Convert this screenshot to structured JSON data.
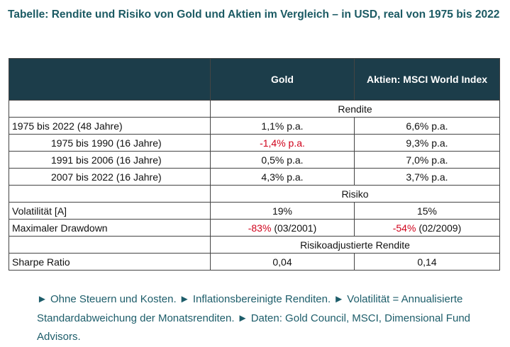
{
  "title": "Tabelle: Rendite und Risiko von Gold und Aktien im Vergleich – in USD, real von 1975 bis 2022",
  "table": {
    "headers": [
      "",
      "Gold",
      "Aktien: MSCI World Index"
    ],
    "sections": {
      "rendite": "Rendite",
      "risiko": "Risiko",
      "risikoadj": "Risikoadjustierte Rendite"
    },
    "rows": {
      "r1": {
        "label": "1975 bis 2022 (48 Jahre)",
        "gold": "1,1% p.a.",
        "msci": "6,6% p.a."
      },
      "r2": {
        "label": "1975 bis 1990 (16 Jahre)",
        "gold": "-1,4% p.a.",
        "msci": "9,3% p.a."
      },
      "r3": {
        "label": "1991 bis 2006 (16 Jahre)",
        "gold": "0,5% p.a.",
        "msci": "7,0% p.a."
      },
      "r4": {
        "label": "2007 bis 2022 (16 Jahre)",
        "gold": "4,3% p.a.",
        "msci": "3,7% p.a."
      },
      "vol": {
        "label": "Volatilität [A]",
        "gold": "19%",
        "msci": "15%"
      },
      "dd": {
        "label": "Maximaler Drawdown",
        "gold_value": "-83%",
        "gold_date": "(03/2001)",
        "msci_value": "-54%",
        "msci_date": "(02/2009)"
      },
      "sharpe": {
        "label": "Sharpe Ratio",
        "gold": "0,04",
        "msci": "0,14"
      }
    }
  },
  "footnote": "► Ohne Steuern und Kosten. ► Inflationsbereinigte Renditen. ► Volatilität = Annualisierte Standardabweichung der Monatsrenditen. ► Daten: Gold Council, MSCI, Dimensional Fund Advisors.",
  "colors": {
    "title": "#1b5a63",
    "header_bg": "#1c3d4a",
    "negative": "#d0021b",
    "footnote": "#1d5d6a"
  }
}
